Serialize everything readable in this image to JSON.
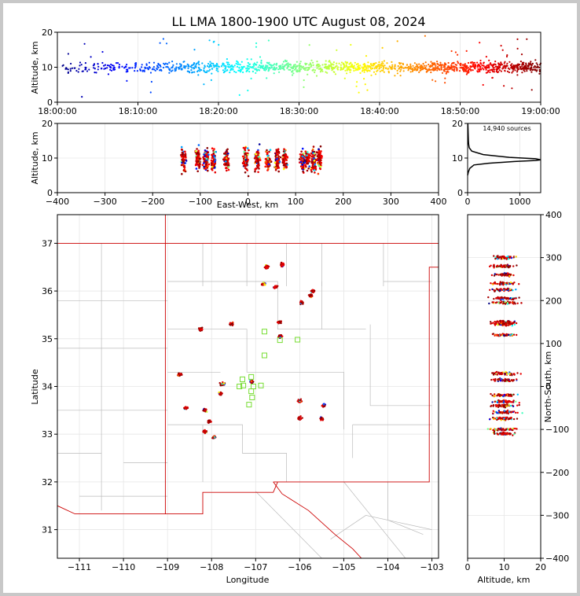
{
  "title": "LL LMA 1800-1900 UTC August 08, 2024",
  "colors": {
    "frame": "#c8c8c8",
    "state_border": "#cc0000",
    "county_border": "#bbbbbb",
    "station": "#77dd33"
  },
  "chart_data": [
    {
      "id": "time-height",
      "type": "scatter",
      "xlabel": "",
      "ylabel": "Altitude, km",
      "xlim": [
        "18:00:00",
        "19:00:00"
      ],
      "ylim": [
        0,
        20
      ],
      "xticks": [
        "18:00:00",
        "18:10:00",
        "18:20:00",
        "18:30:00",
        "18:40:00",
        "18:50:00",
        "19:00:00"
      ],
      "yticks": [
        0,
        10,
        20
      ],
      "color_by": "time",
      "colormap": "jet",
      "typical_altitude_km": 10
    },
    {
      "id": "ew-height",
      "type": "scatter",
      "xlabel": "East-West, km",
      "ylabel": "Altitude, km",
      "xlim": [
        -400,
        400
      ],
      "ylim": [
        0,
        20
      ],
      "xticks": [
        -400,
        -300,
        -200,
        -100,
        0,
        100,
        200,
        300,
        400
      ],
      "yticks": [
        0,
        10,
        20
      ],
      "clusters_x_km": [
        -135,
        -105,
        -88,
        -72,
        -45,
        -5,
        20,
        42,
        62,
        78,
        115,
        125,
        138,
        150
      ]
    },
    {
      "id": "altitude-histogram",
      "type": "line",
      "annotation": "14,940 sources",
      "xlim": [
        0,
        1400
      ],
      "ylim": [
        0,
        20
      ],
      "xticks": [
        0,
        1000
      ],
      "yticks": [
        0,
        10,
        20
      ],
      "x": [
        0,
        15,
        40,
        120,
        400,
        900,
        1300,
        1400,
        1300,
        800,
        300,
        80,
        30,
        20,
        15,
        10,
        5
      ],
      "y": [
        5,
        6,
        7,
        8,
        8.5,
        9,
        9.3,
        9.5,
        9.8,
        10.2,
        11,
        12,
        13,
        14,
        15,
        17,
        20
      ]
    },
    {
      "id": "plan-view",
      "type": "scatter",
      "xlabel": "Longitude",
      "ylabel": "Latitude",
      "xlim": [
        -111.5,
        -102.85
      ],
      "ylim": [
        30.4,
        37.6
      ],
      "xticks": [
        "−111",
        "−110",
        "−109",
        "−108",
        "−107",
        "−106",
        "−105",
        "−104",
        "−103"
      ],
      "yticks": [
        "31",
        "32",
        "33",
        "34",
        "35",
        "36",
        "37"
      ],
      "source_clusters": [
        {
          "lon": -106.75,
          "lat": 36.5
        },
        {
          "lon": -106.4,
          "lat": 36.55
        },
        {
          "lon": -106.55,
          "lat": 36.08
        },
        {
          "lon": -106.82,
          "lat": 36.15
        },
        {
          "lon": -106.45,
          "lat": 35.35
        },
        {
          "lon": -106.45,
          "lat": 35.05
        },
        {
          "lon": -105.75,
          "lat": 35.9
        },
        {
          "lon": -105.7,
          "lat": 36.0
        },
        {
          "lon": -105.95,
          "lat": 35.75
        },
        {
          "lon": -108.72,
          "lat": 34.25
        },
        {
          "lon": -108.15,
          "lat": 33.5
        },
        {
          "lon": -108.05,
          "lat": 33.27
        },
        {
          "lon": -108.15,
          "lat": 33.05
        },
        {
          "lon": -107.95,
          "lat": 32.93
        },
        {
          "lon": -107.75,
          "lat": 34.05
        },
        {
          "lon": -107.1,
          "lat": 34.1
        },
        {
          "lon": -106.0,
          "lat": 33.7
        },
        {
          "lon": -106.0,
          "lat": 33.33
        },
        {
          "lon": -105.45,
          "lat": 33.6
        },
        {
          "lon": -105.5,
          "lat": 33.33
        },
        {
          "lon": -108.25,
          "lat": 35.2
        },
        {
          "lon": -107.55,
          "lat": 35.32
        },
        {
          "lon": -108.58,
          "lat": 33.55
        },
        {
          "lon": -107.8,
          "lat": 33.85
        }
      ],
      "stations": [
        {
          "lon": -106.8,
          "lat": 35.15
        },
        {
          "lon": -106.45,
          "lat": 34.97
        },
        {
          "lon": -106.05,
          "lat": 34.98
        },
        {
          "lon": -106.8,
          "lat": 34.65
        },
        {
          "lon": -107.37,
          "lat": 34.0
        },
        {
          "lon": -107.28,
          "lat": 34.02
        },
        {
          "lon": -107.05,
          "lat": 34.0
        },
        {
          "lon": -107.1,
          "lat": 33.9
        },
        {
          "lon": -107.08,
          "lat": 33.77
        },
        {
          "lon": -107.1,
          "lat": 34.2
        },
        {
          "lon": -106.88,
          "lat": 34.02
        },
        {
          "lon": -107.15,
          "lat": 33.62
        },
        {
          "lon": -107.3,
          "lat": 34.15
        }
      ]
    },
    {
      "id": "ns-height",
      "type": "scatter",
      "xlabel": "Altitude, km",
      "ylabel": "North-South, km",
      "xlim": [
        0,
        20
      ],
      "ylim": [
        -400,
        400
      ],
      "xticks": [
        0,
        10,
        20
      ],
      "yticks": [
        -400,
        -300,
        -200,
        -100,
        0,
        100,
        200,
        300,
        400
      ],
      "clusters_y_km": [
        300,
        280,
        260,
        240,
        225,
        205,
        195,
        150,
        145,
        120,
        30,
        15,
        -20,
        -35,
        -45,
        -60,
        -75,
        -100,
        -110
      ]
    }
  ]
}
